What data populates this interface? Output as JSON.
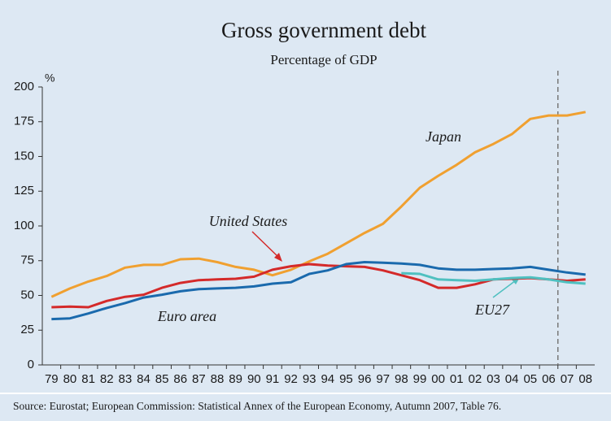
{
  "chart_data": {
    "type": "line",
    "title": "Gross government debt",
    "subtitle": "Percentage of GDP",
    "y_label": "%",
    "source": "Source: Eurostat; European Commission: Statistical Annex of the European Economy, Autumn 2007, Table 76.",
    "categories": [
      "79",
      "80",
      "81",
      "82",
      "83",
      "84",
      "85",
      "86",
      "87",
      "88",
      "89",
      "90",
      "91",
      "92",
      "93",
      "94",
      "95",
      "96",
      "97",
      "98",
      "99",
      "00",
      "01",
      "02",
      "03",
      "04",
      "05",
      "06",
      "07",
      "08"
    ],
    "ylim": [
      0,
      200
    ],
    "yticks": [
      0,
      25,
      50,
      75,
      100,
      125,
      150,
      175,
      200
    ],
    "series": [
      {
        "name": "Japan",
        "color": "#f0a030",
        "values": [
          49,
          55,
          60,
          64,
          70,
          72,
          72,
          76,
          76.5,
          74,
          70.5,
          68.5,
          64.5,
          68.5,
          74.5,
          80,
          87.5,
          95,
          101.5,
          114,
          127.5,
          136,
          144,
          153,
          159,
          166,
          177,
          179.5,
          179.5,
          182
        ]
      },
      {
        "name": "United States",
        "color": "#d42a2a",
        "values": [
          41.5,
          42,
          41.5,
          46,
          49,
          50.5,
          55.5,
          59,
          61,
          61.5,
          62,
          63.5,
          68.5,
          71,
          72.5,
          71.5,
          71,
          70.5,
          68,
          64.5,
          61,
          55.5,
          55.5,
          58,
          61.5,
          62,
          62.5,
          61.5,
          60.5,
          61.5
        ]
      },
      {
        "name": "Euro area",
        "color": "#1a6aad",
        "values": [
          33,
          33.5,
          37,
          41,
          44.5,
          48.5,
          50.5,
          53,
          54.5,
          55,
          55.5,
          56.5,
          58.5,
          59.5,
          65.5,
          68,
          72.5,
          74,
          73.5,
          73,
          72,
          69.5,
          68.5,
          68.5,
          69,
          69.5,
          70.5,
          68.5,
          66.5,
          65
        ]
      },
      {
        "name": "EU27",
        "color": "#4fc0c0",
        "values": [
          null,
          null,
          null,
          null,
          null,
          null,
          null,
          null,
          null,
          null,
          null,
          null,
          null,
          null,
          null,
          null,
          null,
          null,
          null,
          66,
          65.5,
          61.5,
          61,
          60.5,
          61.5,
          62.5,
          63,
          61.5,
          59.5,
          58.5
        ]
      }
    ]
  }
}
